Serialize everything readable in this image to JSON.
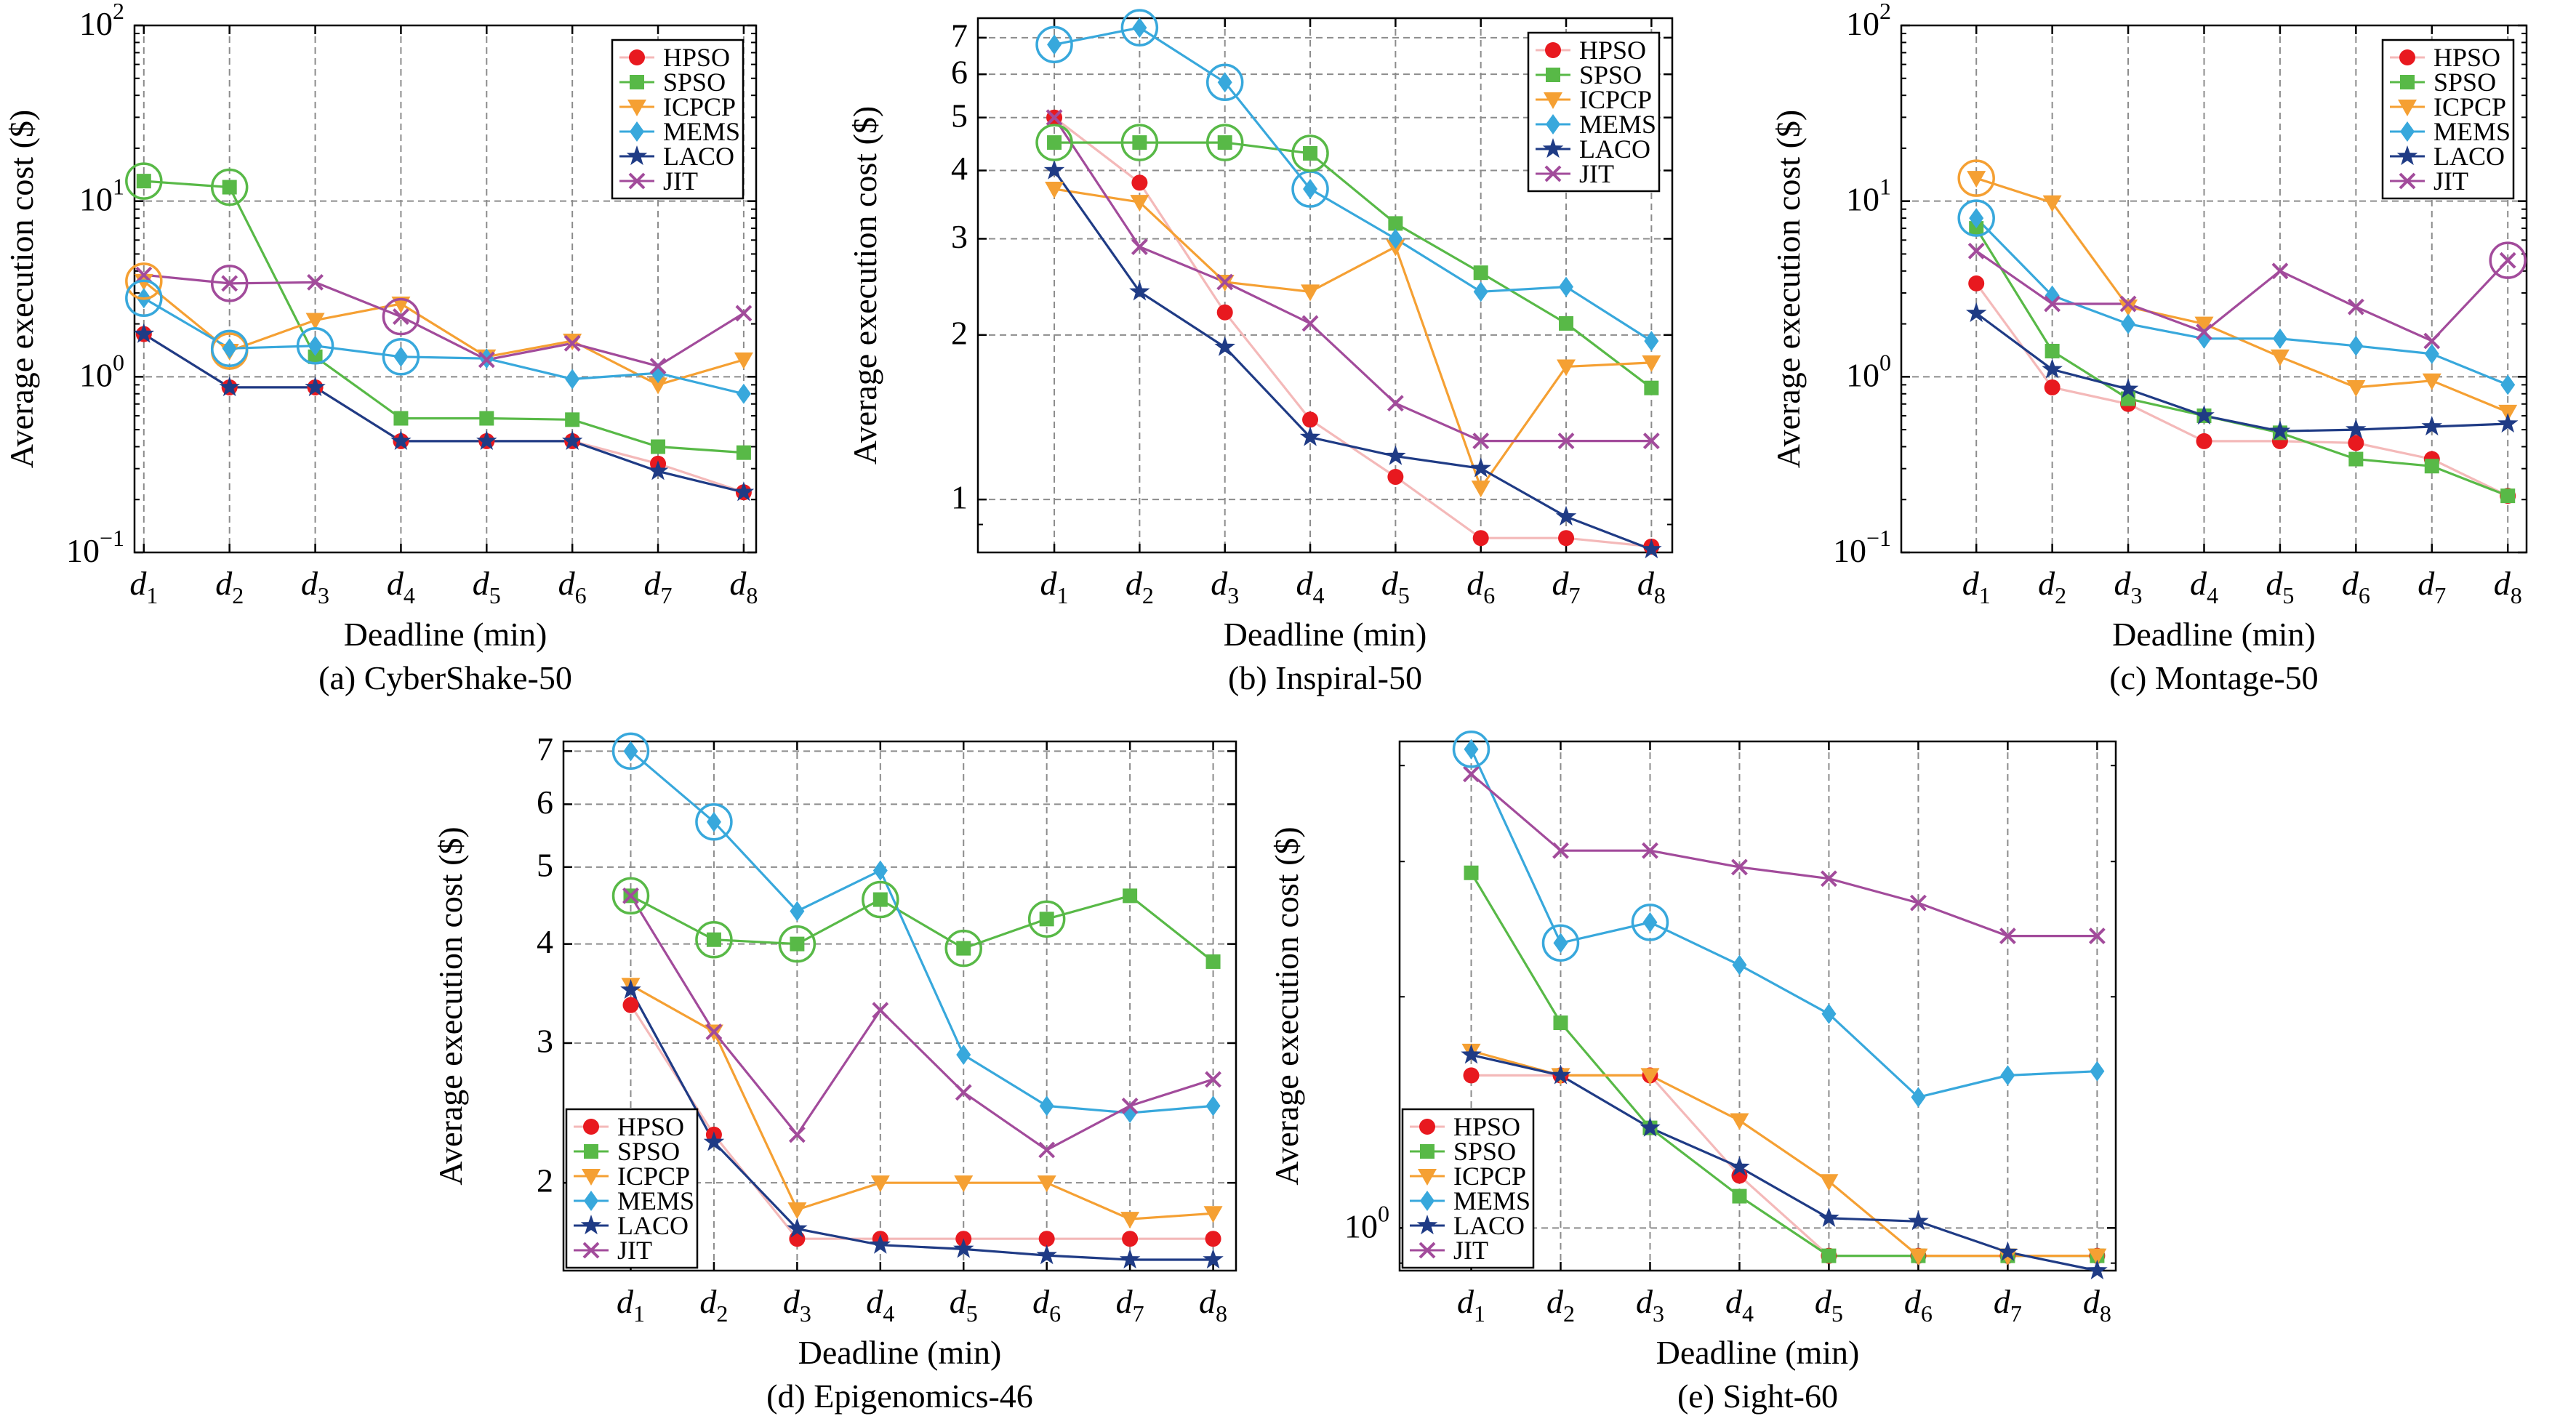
{
  "styles": {
    "colors": {
      "HPSO": "#e8191f",
      "SPSO": "#58b947",
      "ICPCP": "#f5a033",
      "MEMS": "#38a8dc",
      "LACO": "#1f3b85",
      "JIT": "#a24b9b",
      "HPSO_line": "#f4b9b9"
    },
    "markers": {
      "HPSO": "circle",
      "SPSO": "square",
      "ICPCP": "triangle-down",
      "MEMS": "diamond",
      "LACO": "star",
      "JIT": "x"
    }
  },
  "chart_data": [
    {
      "type": "line",
      "caption": "(a) CyberShake-50",
      "xlabel": "Deadline (min)",
      "ylabel": "Average execution cost ($)",
      "categories": [
        "d1",
        "d2",
        "d3",
        "d4",
        "d5",
        "d6",
        "d7",
        "d8"
      ],
      "yscale": "log",
      "ylim": [
        0.1,
        100
      ],
      "yticks": [
        {
          "v": 0.1,
          "b": "10",
          "e": "−1"
        },
        {
          "v": 1,
          "b": "10",
          "e": "0"
        },
        {
          "v": 10,
          "b": "10",
          "e": "1"
        },
        {
          "v": 100,
          "b": "10",
          "e": "2"
        }
      ],
      "legend": "top-right",
      "grid": true,
      "series": [
        {
          "name": "HPSO",
          "values": [
            1.75,
            0.87,
            0.87,
            0.43,
            0.43,
            0.43,
            0.32,
            0.22
          ]
        },
        {
          "name": "SPSO",
          "values": [
            13,
            12,
            1.3,
            0.58,
            0.58,
            0.57,
            0.4,
            0.37
          ]
        },
        {
          "name": "ICPCP",
          "values": [
            3.5,
            1.4,
            2.1,
            2.6,
            1.3,
            1.6,
            0.9,
            1.25
          ]
        },
        {
          "name": "MEMS",
          "values": [
            2.8,
            1.45,
            1.5,
            1.3,
            1.27,
            0.97,
            1.05,
            0.8
          ]
        },
        {
          "name": "LACO",
          "values": [
            1.75,
            0.87,
            0.87,
            0.43,
            0.43,
            0.43,
            0.29,
            0.22
          ]
        },
        {
          "name": "JIT",
          "values": [
            3.8,
            3.4,
            3.45,
            2.2,
            1.25,
            1.55,
            1.15,
            2.3
          ]
        }
      ],
      "circled": [
        [
          "SPSO",
          0
        ],
        [
          "SPSO",
          1
        ],
        [
          "ICPCP",
          0
        ],
        [
          "ICPCP",
          1
        ],
        [
          "MEMS",
          0
        ],
        [
          "MEMS",
          1
        ],
        [
          "MEMS",
          2
        ],
        [
          "MEMS",
          3
        ],
        [
          "JIT",
          1
        ],
        [
          "JIT",
          3
        ]
      ]
    },
    {
      "type": "line",
      "caption": "(b) Inspiral-50",
      "xlabel": "Deadline (min)",
      "ylabel": "Average execution cost ($)",
      "categories": [
        "d1",
        "d2",
        "d3",
        "d4",
        "d5",
        "d6",
        "d7",
        "d8"
      ],
      "yscale": "log",
      "ylim": [
        0.8,
        7.6
      ],
      "yticks": [
        {
          "v": 1,
          "t": "1"
        },
        {
          "v": 2,
          "t": "2"
        },
        {
          "v": 3,
          "t": "3"
        },
        {
          "v": 4,
          "t": "4"
        },
        {
          "v": 5,
          "t": "5"
        },
        {
          "v": 6,
          "t": "6"
        },
        {
          "v": 7,
          "t": "7"
        }
      ],
      "legend": "top-right",
      "grid": true,
      "series": [
        {
          "name": "HPSO",
          "values": [
            5.0,
            3.8,
            2.2,
            1.4,
            1.1,
            0.85,
            0.85,
            0.82
          ]
        },
        {
          "name": "SPSO",
          "values": [
            4.5,
            4.5,
            4.5,
            4.3,
            3.2,
            2.6,
            2.1,
            1.6
          ]
        },
        {
          "name": "ICPCP",
          "values": [
            3.7,
            3.5,
            2.5,
            2.4,
            2.9,
            1.05,
            1.75,
            1.78
          ]
        },
        {
          "name": "MEMS",
          "values": [
            6.8,
            7.3,
            5.8,
            3.7,
            3.0,
            2.4,
            2.45,
            1.95
          ]
        },
        {
          "name": "LACO",
          "values": [
            4.0,
            2.4,
            1.9,
            1.3,
            1.2,
            1.14,
            0.93,
            0.81
          ]
        },
        {
          "name": "JIT",
          "values": [
            5.0,
            2.9,
            2.5,
            2.1,
            1.5,
            1.28,
            1.28,
            1.28
          ]
        }
      ],
      "circled": [
        [
          "MEMS",
          0
        ],
        [
          "MEMS",
          1
        ],
        [
          "MEMS",
          2
        ],
        [
          "MEMS",
          3
        ],
        [
          "SPSO",
          0
        ],
        [
          "SPSO",
          1
        ],
        [
          "SPSO",
          2
        ],
        [
          "SPSO",
          3
        ]
      ]
    },
    {
      "type": "line",
      "caption": "(c) Montage-50",
      "xlabel": "Deadline (min)",
      "ylabel": "Average execution cost ($)",
      "categories": [
        "d1",
        "d2",
        "d3",
        "d4",
        "d5",
        "d6",
        "d7",
        "d8"
      ],
      "yscale": "log",
      "ylim": [
        0.1,
        100
      ],
      "yticks": [
        {
          "v": 0.1,
          "b": "10",
          "e": "−1"
        },
        {
          "v": 1,
          "b": "10",
          "e": "0"
        },
        {
          "v": 10,
          "b": "10",
          "e": "1"
        },
        {
          "v": 100,
          "b": "10",
          "e": "2"
        }
      ],
      "legend": "top-right",
      "grid": true,
      "series": [
        {
          "name": "HPSO",
          "values": [
            3.4,
            0.87,
            0.7,
            0.43,
            0.43,
            0.42,
            0.34,
            0.21
          ]
        },
        {
          "name": "SPSO",
          "values": [
            7.0,
            1.4,
            0.75,
            0.6,
            0.48,
            0.34,
            0.31,
            0.21
          ]
        },
        {
          "name": "ICPCP",
          "values": [
            13.5,
            9.8,
            2.5,
            2.0,
            1.3,
            0.87,
            0.95,
            0.63
          ]
        },
        {
          "name": "MEMS",
          "values": [
            8.0,
            2.9,
            2.0,
            1.65,
            1.65,
            1.5,
            1.35,
            0.9
          ]
        },
        {
          "name": "LACO",
          "values": [
            2.3,
            1.1,
            0.85,
            0.6,
            0.49,
            0.5,
            0.52,
            0.54
          ]
        },
        {
          "name": "JIT",
          "values": [
            5.2,
            2.6,
            2.6,
            1.8,
            4.0,
            2.5,
            1.6,
            4.6
          ]
        }
      ],
      "circled": [
        [
          "ICPCP",
          0
        ],
        [
          "MEMS",
          0
        ],
        [
          "JIT",
          7
        ]
      ]
    },
    {
      "type": "line",
      "caption": "(d) Epigenomics-46",
      "xlabel": "Deadline (min)",
      "ylabel": "Average execution cost ($)",
      "categories": [
        "d1",
        "d2",
        "d3",
        "d4",
        "d5",
        "d6",
        "d7",
        "d8"
      ],
      "yscale": "log",
      "ylim": [
        1.55,
        7.2
      ],
      "yticks": [
        {
          "v": 2,
          "t": "2"
        },
        {
          "v": 3,
          "t": "3"
        },
        {
          "v": 4,
          "t": "4"
        },
        {
          "v": 5,
          "t": "5"
        },
        {
          "v": 6,
          "t": "6"
        },
        {
          "v": 7,
          "t": "7"
        }
      ],
      "legend": "bottom-left",
      "grid": true,
      "series": [
        {
          "name": "HPSO",
          "values": [
            3.35,
            2.3,
            1.7,
            1.7,
            1.7,
            1.7,
            1.7,
            1.7
          ]
        },
        {
          "name": "SPSO",
          "values": [
            4.6,
            4.05,
            4.0,
            4.55,
            3.95,
            4.3,
            4.6,
            3.8
          ]
        },
        {
          "name": "ICPCP",
          "values": [
            3.55,
            3.1,
            1.85,
            2.0,
            2.0,
            2.0,
            1.8,
            1.83
          ]
        },
        {
          "name": "MEMS",
          "values": [
            7.0,
            5.7,
            4.4,
            4.95,
            2.9,
            2.5,
            2.45,
            2.5
          ]
        },
        {
          "name": "LACO",
          "values": [
            3.5,
            2.25,
            1.75,
            1.67,
            1.65,
            1.62,
            1.6,
            1.6
          ]
        },
        {
          "name": "JIT",
          "values": [
            4.6,
            3.1,
            2.3,
            3.3,
            2.6,
            2.2,
            2.5,
            2.7
          ]
        }
      ],
      "circled": [
        [
          "MEMS",
          0
        ],
        [
          "MEMS",
          1
        ],
        [
          "SPSO",
          0
        ],
        [
          "SPSO",
          1
        ],
        [
          "SPSO",
          2
        ],
        [
          "SPSO",
          3
        ],
        [
          "SPSO",
          4
        ],
        [
          "SPSO",
          5
        ]
      ]
    },
    {
      "type": "line",
      "caption": "(e) Sight-60",
      "xlabel": "Deadline (min)",
      "ylabel": "Average execution cost ($)",
      "categories": [
        "d1",
        "d2",
        "d3",
        "d4",
        "d5",
        "d6",
        "d7",
        "d8"
      ],
      "yscale": "log",
      "ylim": [
        0.88,
        4.3
      ],
      "yticks": [
        {
          "v": 1,
          "b": "10",
          "e": "0"
        }
      ],
      "legend": "bottom-left",
      "grid": true,
      "series": [
        {
          "name": "HPSO",
          "values": [
            1.58,
            1.58,
            1.58,
            1.17,
            0.92,
            0.92,
            0.92,
            0.92
          ]
        },
        {
          "name": "SPSO",
          "values": [
            2.9,
            1.85,
            1.35,
            1.1,
            0.92,
            0.92,
            0.92,
            0.92
          ]
        },
        {
          "name": "ICPCP",
          "values": [
            1.7,
            1.58,
            1.58,
            1.38,
            1.15,
            0.92,
            0.92,
            0.92
          ]
        },
        {
          "name": "MEMS",
          "values": [
            4.2,
            2.35,
            2.5,
            2.2,
            1.9,
            1.48,
            1.58,
            1.6
          ]
        },
        {
          "name": "LACO",
          "values": [
            1.68,
            1.58,
            1.35,
            1.2,
            1.03,
            1.02,
            0.93,
            0.88
          ]
        },
        {
          "name": "JIT",
          "values": [
            3.9,
            3.1,
            3.1,
            2.95,
            2.85,
            2.65,
            2.4,
            2.4
          ]
        }
      ],
      "circled": [
        [
          "MEMS",
          0
        ],
        [
          "MEMS",
          1
        ],
        [
          "MEMS",
          2
        ]
      ]
    }
  ]
}
